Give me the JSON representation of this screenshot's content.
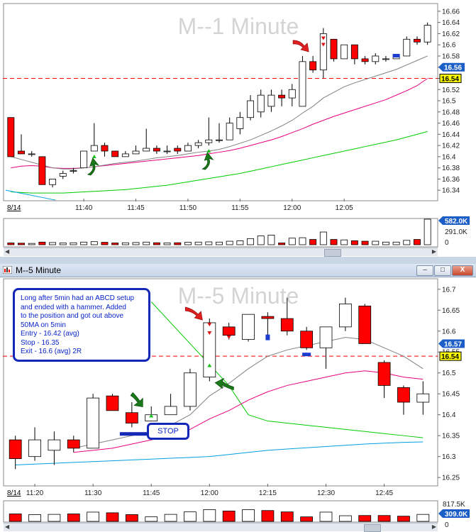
{
  "top": {
    "watermark": "M--1 Minute",
    "price_axis": {
      "ticks": [
        "16.66",
        "16.64",
        "16.62",
        "16.6",
        "16.58",
        "16.56",
        "16.54",
        "16.52",
        "16.5",
        "16.48",
        "16.46",
        "16.44",
        "16.42",
        "16.4",
        "16.38",
        "16.36",
        "16.34"
      ],
      "last_price_label": "16.56",
      "line_label": "16.54"
    },
    "time_axis": {
      "date_label": "8/14",
      "ticks": [
        "11:40",
        "11:45",
        "11:50",
        "11:55",
        "12:00",
        "12:05"
      ]
    },
    "volume_axis": {
      "max_label": "582.0K",
      "mid_label": "291.0K",
      "zero_label": "0"
    }
  },
  "bottom": {
    "title": "M--5 Minute",
    "watermark": "M--5 Minute",
    "note": {
      "lines": [
        "Long after 5min had an ABCD setup",
        "and ended with a hammer. Added",
        "to the position and got out above",
        "50MA on 5min",
        "Entry - 16.42 (avg)",
        "Stop - 16.35",
        "Exit - 16.6 (avg) 2R"
      ]
    },
    "stop_label": "STOP",
    "price_axis": {
      "ticks": [
        "16.7",
        "16.65",
        "16.6",
        "16.55",
        "16.5",
        "16.45",
        "16.4",
        "16.35",
        "16.3",
        "16.25"
      ],
      "last_price_label": "16.57",
      "line_label": "16.54"
    },
    "time_axis": {
      "date_label": "8/14",
      "ticks": [
        "11:20",
        "11:30",
        "11:45",
        "12:00",
        "12:15",
        "12:30",
        "12:45"
      ]
    },
    "volume_axis": {
      "max_label": "817.5K",
      "last_label": "309.0K",
      "zero_label": "0"
    }
  },
  "window_buttons": {
    "minimize": "–",
    "maximize": "□",
    "close": "X"
  },
  "colors": {
    "up": "#ffffff",
    "down": "#ff0000",
    "ma_fast": "#808080",
    "ma_mid": "#e6007e",
    "ma_slow": "#00cc00",
    "ma_long": "#00a0e0",
    "line": "#ff0000",
    "annotation": "#1428b8",
    "arrow_up": "#1a7a1a",
    "arrow_red": "#e02020",
    "volume_flat": "#000000"
  },
  "chart_data": [
    {
      "type": "candlestick",
      "name": "M--1 Minute",
      "ylim": [
        16.325,
        16.67
      ],
      "horizontal_line": 16.54,
      "last_price": 16.56,
      "time_ticks": [
        "11:40",
        "11:45",
        "11:50",
        "11:55",
        "12:00",
        "12:05"
      ],
      "candles": [
        {
          "o": 16.47,
          "h": 16.47,
          "l": 16.4,
          "c": 16.4
        },
        {
          "o": 16.41,
          "h": 16.44,
          "l": 16.405,
          "c": 16.405
        },
        {
          "o": 16.405,
          "h": 16.41,
          "l": 16.4,
          "c": 16.405
        },
        {
          "o": 16.4,
          "h": 16.4,
          "l": 16.35,
          "c": 16.35
        },
        {
          "o": 16.35,
          "h": 16.36,
          "l": 16.345,
          "c": 16.36
        },
        {
          "o": 16.365,
          "h": 16.375,
          "l": 16.36,
          "c": 16.37
        },
        {
          "o": 16.375,
          "h": 16.38,
          "l": 16.37,
          "c": 16.375
        },
        {
          "o": 16.38,
          "h": 16.41,
          "l": 16.38,
          "c": 16.41
        },
        {
          "o": 16.41,
          "h": 16.46,
          "l": 16.41,
          "c": 16.42
        },
        {
          "o": 16.42,
          "h": 16.425,
          "l": 16.4,
          "c": 16.41
        },
        {
          "o": 16.41,
          "h": 16.41,
          "l": 16.4,
          "c": 16.4
        },
        {
          "o": 16.4,
          "h": 16.41,
          "l": 16.4,
          "c": 16.405
        },
        {
          "o": 16.405,
          "h": 16.42,
          "l": 16.405,
          "c": 16.41
        },
        {
          "o": 16.41,
          "h": 16.45,
          "l": 16.41,
          "c": 16.415
        },
        {
          "o": 16.415,
          "h": 16.42,
          "l": 16.405,
          "c": 16.41
        },
        {
          "o": 16.41,
          "h": 16.42,
          "l": 16.405,
          "c": 16.41
        },
        {
          "o": 16.415,
          "h": 16.42,
          "l": 16.405,
          "c": 16.41
        },
        {
          "o": 16.41,
          "h": 16.425,
          "l": 16.41,
          "c": 16.42
        },
        {
          "o": 16.42,
          "h": 16.43,
          "l": 16.415,
          "c": 16.425
        },
        {
          "o": 16.425,
          "h": 16.47,
          "l": 16.42,
          "c": 16.43
        },
        {
          "o": 16.43,
          "h": 16.46,
          "l": 16.425,
          "c": 16.43
        },
        {
          "o": 16.43,
          "h": 16.47,
          "l": 16.43,
          "c": 16.46
        },
        {
          "o": 16.45,
          "h": 16.48,
          "l": 16.44,
          "c": 16.47
        },
        {
          "o": 16.47,
          "h": 16.51,
          "l": 16.465,
          "c": 16.5
        },
        {
          "o": 16.48,
          "h": 16.52,
          "l": 16.47,
          "c": 16.51
        },
        {
          "o": 16.49,
          "h": 16.52,
          "l": 16.48,
          "c": 16.51
        },
        {
          "o": 16.51,
          "h": 16.52,
          "l": 16.49,
          "c": 16.505
        },
        {
          "o": 16.505,
          "h": 16.53,
          "l": 16.49,
          "c": 16.52
        },
        {
          "o": 16.49,
          "h": 16.58,
          "l": 16.49,
          "c": 16.57
        },
        {
          "o": 16.57,
          "h": 16.58,
          "l": 16.55,
          "c": 16.555
        },
        {
          "o": 16.555,
          "h": 16.63,
          "l": 16.54,
          "c": 16.62
        },
        {
          "o": 16.61,
          "h": 16.61,
          "l": 16.57,
          "c": 16.575
        },
        {
          "o": 16.575,
          "h": 16.6,
          "l": 16.575,
          "c": 16.6
        },
        {
          "o": 16.6,
          "h": 16.6,
          "l": 16.565,
          "c": 16.575
        },
        {
          "o": 16.575,
          "h": 16.58,
          "l": 16.565,
          "c": 16.57
        },
        {
          "o": 16.57,
          "h": 16.585,
          "l": 16.565,
          "c": 16.58
        },
        {
          "o": 16.575,
          "h": 16.58,
          "l": 16.57,
          "c": 16.575
        },
        {
          "o": 16.575,
          "h": 16.58,
          "l": 16.575,
          "c": 16.58
        },
        {
          "o": 16.58,
          "h": 16.615,
          "l": 16.58,
          "c": 16.61
        },
        {
          "o": 16.61,
          "h": 16.615,
          "l": 16.6,
          "c": 16.605
        },
        {
          "o": 16.605,
          "h": 16.64,
          "l": 16.6,
          "c": 16.635
        }
      ],
      "ma_fast": [
        16.4,
        16.395,
        16.39,
        16.385,
        16.38,
        16.378,
        16.378,
        16.38,
        16.382,
        16.385,
        16.388,
        16.39,
        16.392,
        16.395,
        16.398,
        16.4,
        16.402,
        16.405,
        16.408,
        16.41,
        16.413,
        16.418,
        16.424,
        16.43,
        16.438,
        16.446,
        16.455,
        16.465,
        16.478,
        16.49,
        16.505,
        16.515,
        16.525,
        16.532,
        16.538,
        16.544,
        16.55,
        16.556,
        16.564,
        16.572,
        16.58
      ],
      "ma_mid": [
        16.38,
        16.383,
        16.384,
        16.383,
        16.38,
        16.379,
        16.379,
        16.38,
        16.382,
        16.384,
        16.386,
        16.388,
        16.39,
        16.392,
        16.394,
        16.396,
        16.398,
        16.4,
        16.402,
        16.405,
        16.408,
        16.411,
        16.415,
        16.42,
        16.425,
        16.43,
        16.436,
        16.443,
        16.45,
        16.458,
        16.465,
        16.472,
        16.478,
        16.484,
        16.49,
        16.496,
        16.502,
        16.51,
        16.518,
        16.527,
        16.54
      ],
      "ma_slow": [
        16.337,
        16.336,
        16.335,
        16.335,
        16.335,
        16.335,
        16.336,
        16.337,
        16.338,
        16.339,
        16.34,
        16.341,
        16.343,
        16.345,
        16.347,
        16.349,
        16.352,
        16.355,
        16.358,
        16.361,
        16.364,
        16.367,
        16.37,
        16.374,
        16.378,
        16.382,
        16.386,
        16.39,
        16.394,
        16.398,
        16.402,
        16.406,
        16.41,
        16.414,
        16.418,
        16.422,
        16.426,
        16.43,
        16.435,
        16.44,
        16.445
      ],
      "ma_long_start": [
        16.34,
        16.33
      ],
      "volume": [
        40,
        35,
        30,
        60,
        50,
        40,
        45,
        60,
        70,
        55,
        40,
        45,
        50,
        60,
        45,
        40,
        45,
        55,
        60,
        65,
        60,
        80,
        90,
        140,
        200,
        220,
        40,
        150,
        160,
        120,
        290,
        120,
        110,
        90,
        80,
        80,
        60,
        60,
        100,
        120,
        582
      ],
      "volume_max": 582,
      "annotations": {
        "green_up_arrows_at": [
          8,
          19
        ],
        "small_green_markers_at": [
          8,
          19
        ],
        "red_arrow_at": 29,
        "red_triangles_at": [
          30,
          33
        ],
        "blue_marker_at": 37
      }
    },
    {
      "type": "candlestick",
      "name": "M--5 Minute",
      "ylim": [
        16.235,
        16.72
      ],
      "horizontal_line": 16.54,
      "last_price": 16.57,
      "time_ticks": [
        "11:20",
        "11:30",
        "11:45",
        "12:00",
        "12:15",
        "12:30",
        "12:45"
      ],
      "candles": [
        {
          "o": 16.34,
          "h": 16.35,
          "l": 16.27,
          "c": 16.295
        },
        {
          "o": 16.3,
          "h": 16.37,
          "l": 16.29,
          "c": 16.34
        },
        {
          "o": 16.315,
          "h": 16.36,
          "l": 16.28,
          "c": 16.34
        },
        {
          "o": 16.34,
          "h": 16.35,
          "l": 16.31,
          "c": 16.32
        },
        {
          "o": 16.32,
          "h": 16.45,
          "l": 16.32,
          "c": 16.44
        },
        {
          "o": 16.445,
          "h": 16.45,
          "l": 16.41,
          "c": 16.41
        },
        {
          "o": 16.405,
          "h": 16.43,
          "l": 16.37,
          "c": 16.38
        },
        {
          "o": 16.385,
          "h": 16.42,
          "l": 16.385,
          "c": 16.4
        },
        {
          "o": 16.4,
          "h": 16.45,
          "l": 16.4,
          "c": 16.42
        },
        {
          "o": 16.42,
          "h": 16.51,
          "l": 16.41,
          "c": 16.5
        },
        {
          "o": 16.49,
          "h": 16.63,
          "l": 16.48,
          "c": 16.62
        },
        {
          "o": 16.61,
          "h": 16.62,
          "l": 16.58,
          "c": 16.59
        },
        {
          "o": 16.58,
          "h": 16.64,
          "l": 16.575,
          "c": 16.64
        },
        {
          "o": 16.635,
          "h": 16.645,
          "l": 16.58,
          "c": 16.63
        },
        {
          "o": 16.63,
          "h": 16.68,
          "l": 16.59,
          "c": 16.6
        },
        {
          "o": 16.6,
          "h": 16.61,
          "l": 16.555,
          "c": 16.56
        },
        {
          "o": 16.56,
          "h": 16.61,
          "l": 16.51,
          "c": 16.61
        },
        {
          "o": 16.61,
          "h": 16.68,
          "l": 16.6,
          "c": 16.665
        },
        {
          "o": 16.66,
          "h": 16.665,
          "l": 16.57,
          "c": 16.57
        },
        {
          "o": 16.525,
          "h": 16.53,
          "l": 16.44,
          "c": 16.47
        },
        {
          "o": 16.465,
          "h": 16.47,
          "l": 16.4,
          "c": 16.43
        },
        {
          "o": 16.43,
          "h": 16.48,
          "l": 16.4,
          "c": 16.45
        }
      ],
      "ma_fast": [
        null,
        null,
        null,
        16.32,
        16.33,
        16.34,
        16.35,
        16.36,
        16.375,
        16.4,
        16.445,
        16.475,
        16.51,
        16.54,
        16.555,
        16.565,
        16.575,
        16.585,
        16.58,
        16.56,
        16.54,
        16.51
      ],
      "ma_mid": [
        null,
        null,
        null,
        16.31,
        16.315,
        16.32,
        16.33,
        16.34,
        16.35,
        16.365,
        16.39,
        16.41,
        16.435,
        16.455,
        16.47,
        16.48,
        16.49,
        16.5,
        16.505,
        16.5,
        16.49,
        16.485
      ],
      "ma_slow": [
        null,
        null,
        null,
        null,
        null,
        null,
        null,
        16.67,
        16.62,
        16.57,
        16.52,
        16.47,
        16.4,
        16.385,
        16.38,
        16.375,
        16.37,
        16.365,
        16.36,
        16.355,
        16.35,
        16.345
      ],
      "ma_long": [
        16.28,
        16.282,
        16.284,
        16.286,
        16.288,
        16.29,
        16.292,
        16.294,
        16.296,
        16.298,
        16.3,
        16.305,
        16.31,
        16.315,
        16.318,
        16.321,
        16.324,
        16.327,
        16.33,
        16.332,
        16.334,
        16.335
      ],
      "volume": [
        330,
        300,
        310,
        330,
        410,
        380,
        300,
        200,
        310,
        420,
        520,
        460,
        520,
        480,
        420,
        200,
        410,
        250,
        260,
        260,
        230,
        309
      ],
      "volume_max": 817.5,
      "annotations": {
        "entry_level_bar": [
          16.355,
          6,
          7
        ],
        "green_arrows_at": [
          7,
          10
        ],
        "red_arrow_at": 10,
        "red_triangles_at": [
          10,
          11
        ],
        "blue_marker_at": [
          13,
          15
        ]
      }
    }
  ]
}
